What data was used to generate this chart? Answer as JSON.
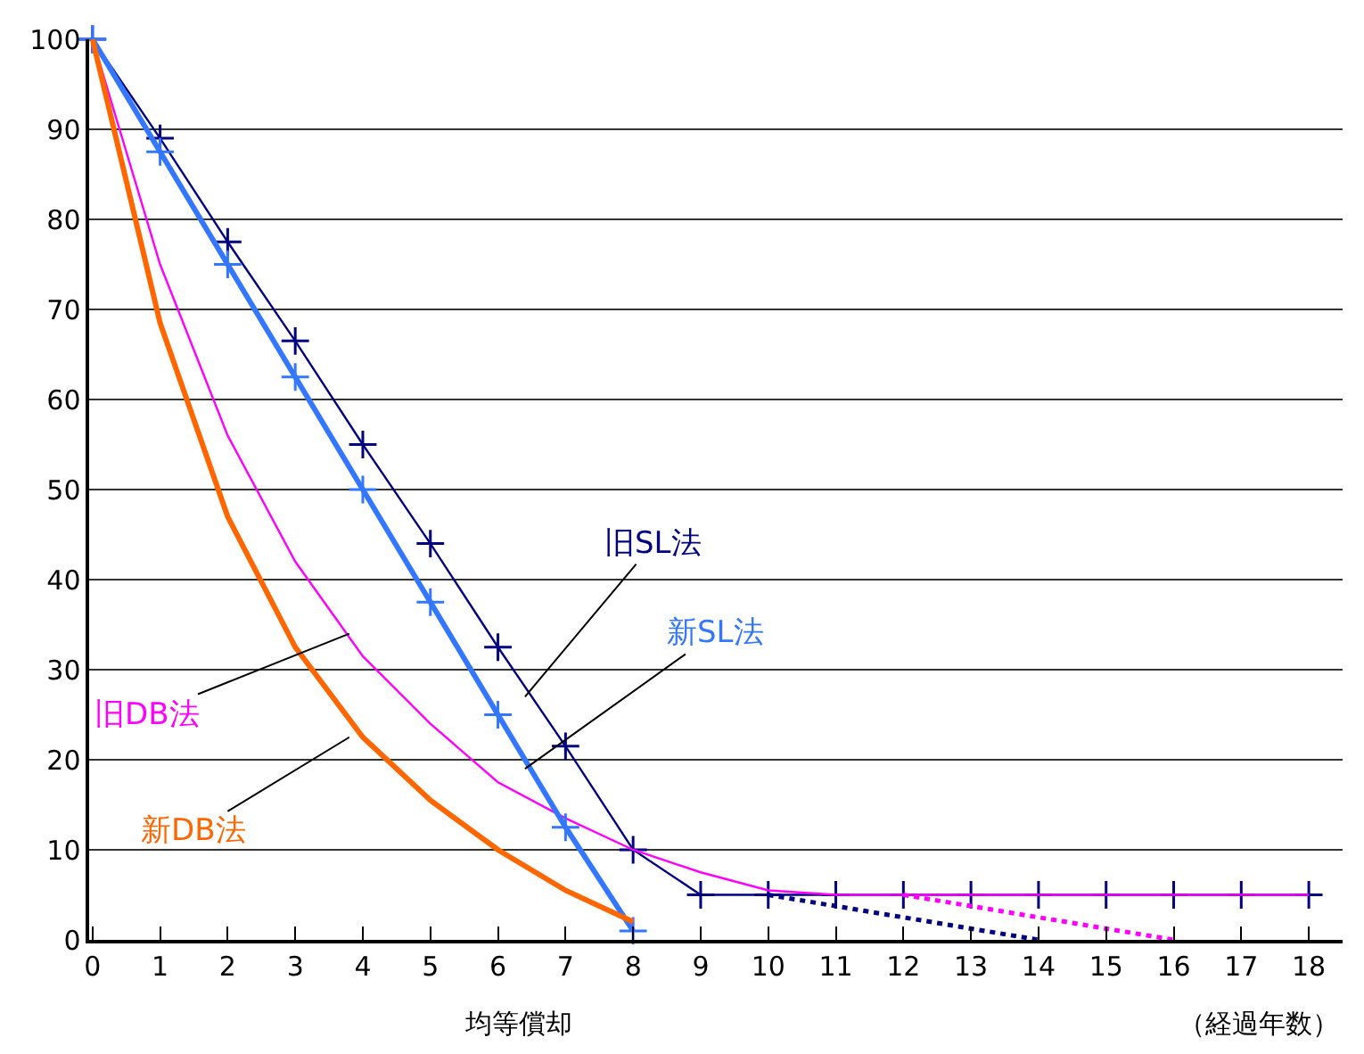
{
  "chart_data": {
    "type": "line",
    "x": [
      0,
      1,
      2,
      3,
      4,
      5,
      6,
      7,
      8
    ],
    "series": [
      {
        "name": "旧SL法",
        "color": "#000080",
        "marker": "cross",
        "line_style": "solid",
        "x": [
          0,
          1,
          2,
          3,
          4,
          5,
          6,
          7,
          8,
          9,
          10,
          11,
          12,
          13,
          14,
          15,
          16,
          17,
          18
        ],
        "values": [
          100,
          89,
          77.5,
          66.5,
          55,
          44,
          32.5,
          21.5,
          10,
          5,
          5,
          5,
          5,
          5,
          5,
          5,
          5,
          5,
          5
        ]
      },
      {
        "name": "旧DB法",
        "color": "#ff00ff",
        "marker": "none",
        "line_style": "solid",
        "x": [
          0,
          1,
          2,
          3,
          4,
          5,
          6,
          7,
          8,
          9,
          10,
          11,
          12,
          13,
          14,
          15,
          16,
          17,
          18
        ],
        "values": [
          100,
          75,
          56,
          42,
          31.5,
          24,
          17.5,
          13.5,
          10,
          7.5,
          5.5,
          5,
          5,
          5,
          5,
          5,
          5,
          5,
          5
        ]
      },
      {
        "name": "新SL法",
        "color": "#3377ff",
        "marker": "cross",
        "line_style": "solid",
        "values": [
          100,
          87.5,
          75,
          62.5,
          50,
          37.5,
          25,
          12.5,
          1
        ]
      },
      {
        "name": "新DB法",
        "color": "#ff6600",
        "marker": "none",
        "line_style": "solid",
        "values": [
          100,
          68.5,
          47,
          32.5,
          22.5,
          15.5,
          10,
          5.5,
          2
        ]
      },
      {
        "color": "#000080",
        "marker": "none",
        "line_style": "dotted",
        "x": [
          10,
          14
        ],
        "values": [
          5,
          0
        ]
      },
      {
        "color": "#ff00ff",
        "marker": "none",
        "line_style": "dotted",
        "x": [
          12,
          16
        ],
        "values": [
          5,
          0
        ]
      }
    ],
    "xlim": [
      -0.05,
      18.5
    ],
    "xticks": [
      0,
      1,
      2,
      3,
      4,
      5,
      6,
      7,
      8,
      9,
      10,
      11,
      12,
      13,
      14,
      15,
      16,
      17,
      18
    ],
    "ylim": [
      0,
      100
    ],
    "yticks": [
      0,
      10,
      20,
      30,
      40,
      50,
      60,
      70,
      80,
      90,
      100
    ],
    "grid": "y",
    "annotations": [
      "均等償却",
      "（経過年数）"
    ]
  }
}
